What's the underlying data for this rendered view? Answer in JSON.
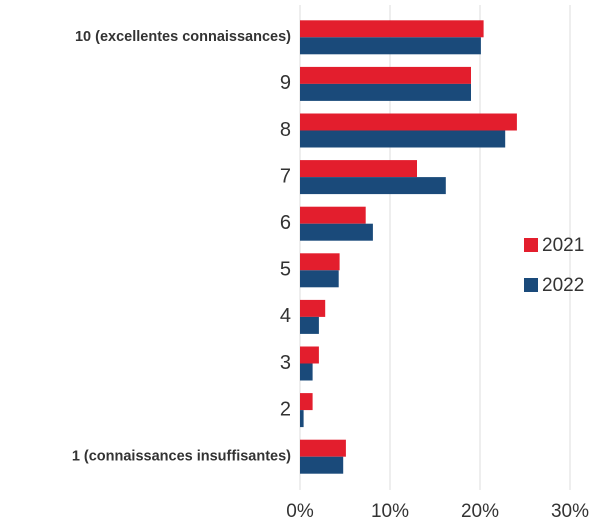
{
  "chart_data": {
    "type": "barh",
    "categories": [
      "10 (excellentes connaissances)",
      "9",
      "8",
      "7",
      "6",
      "5",
      "4",
      "3",
      "2",
      "1 (connaissances insuffisantes)"
    ],
    "series": [
      {
        "name": "2021",
        "color": "#e31e2d",
        "values": [
          20.4,
          19.0,
          24.1,
          13.0,
          7.3,
          4.4,
          2.8,
          2.1,
          1.4,
          5.1
        ]
      },
      {
        "name": "2022",
        "color": "#1a4a7a",
        "values": [
          20.1,
          19.0,
          22.8,
          16.2,
          8.1,
          4.3,
          2.1,
          1.4,
          0.4,
          4.8
        ]
      }
    ],
    "xlim": [
      0,
      30
    ],
    "xticks": [
      {
        "value": 0,
        "label": "0%"
      },
      {
        "value": 10,
        "label": "10%"
      },
      {
        "value": 20,
        "label": "20%"
      },
      {
        "value": 30,
        "label": "30%"
      }
    ],
    "grid": true,
    "legend": "right"
  }
}
